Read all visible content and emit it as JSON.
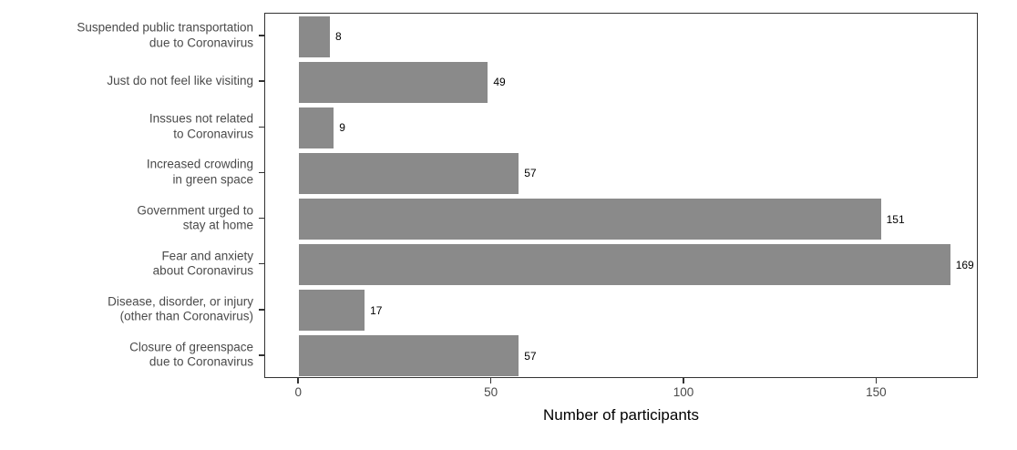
{
  "chart_data": {
    "type": "bar",
    "orientation": "horizontal",
    "title": "",
    "xlabel": "Number of participants",
    "ylabel": "",
    "categories": [
      [
        "Suspended public transportation",
        "due to Coronavirus"
      ],
      [
        "Just do not feel like visiting"
      ],
      [
        "Inssues not related",
        "to Coronavirus"
      ],
      [
        "Increased crowding",
        "in green space"
      ],
      [
        "Government urged to",
        "stay at home"
      ],
      [
        "Fear and anxiety",
        "about Coronavirus"
      ],
      [
        "Disease, disorder, or injury",
        "(other than Coronavirus)"
      ],
      [
        "Closure of greenspace",
        "due to Coronavirus"
      ]
    ],
    "values": [
      8,
      49,
      9,
      57,
      151,
      169,
      17,
      57
    ],
    "x_ticks": [
      0,
      50,
      100,
      150
    ],
    "xlim": [
      -8.8,
      176.4
    ],
    "grid": false,
    "legend": false,
    "colors": {
      "bar_fill": "#8a8a8a",
      "value_label": "#000000",
      "axis_text": "#4a4a4a",
      "axis_line": "#333333",
      "panel_background": "#ffffff"
    }
  }
}
